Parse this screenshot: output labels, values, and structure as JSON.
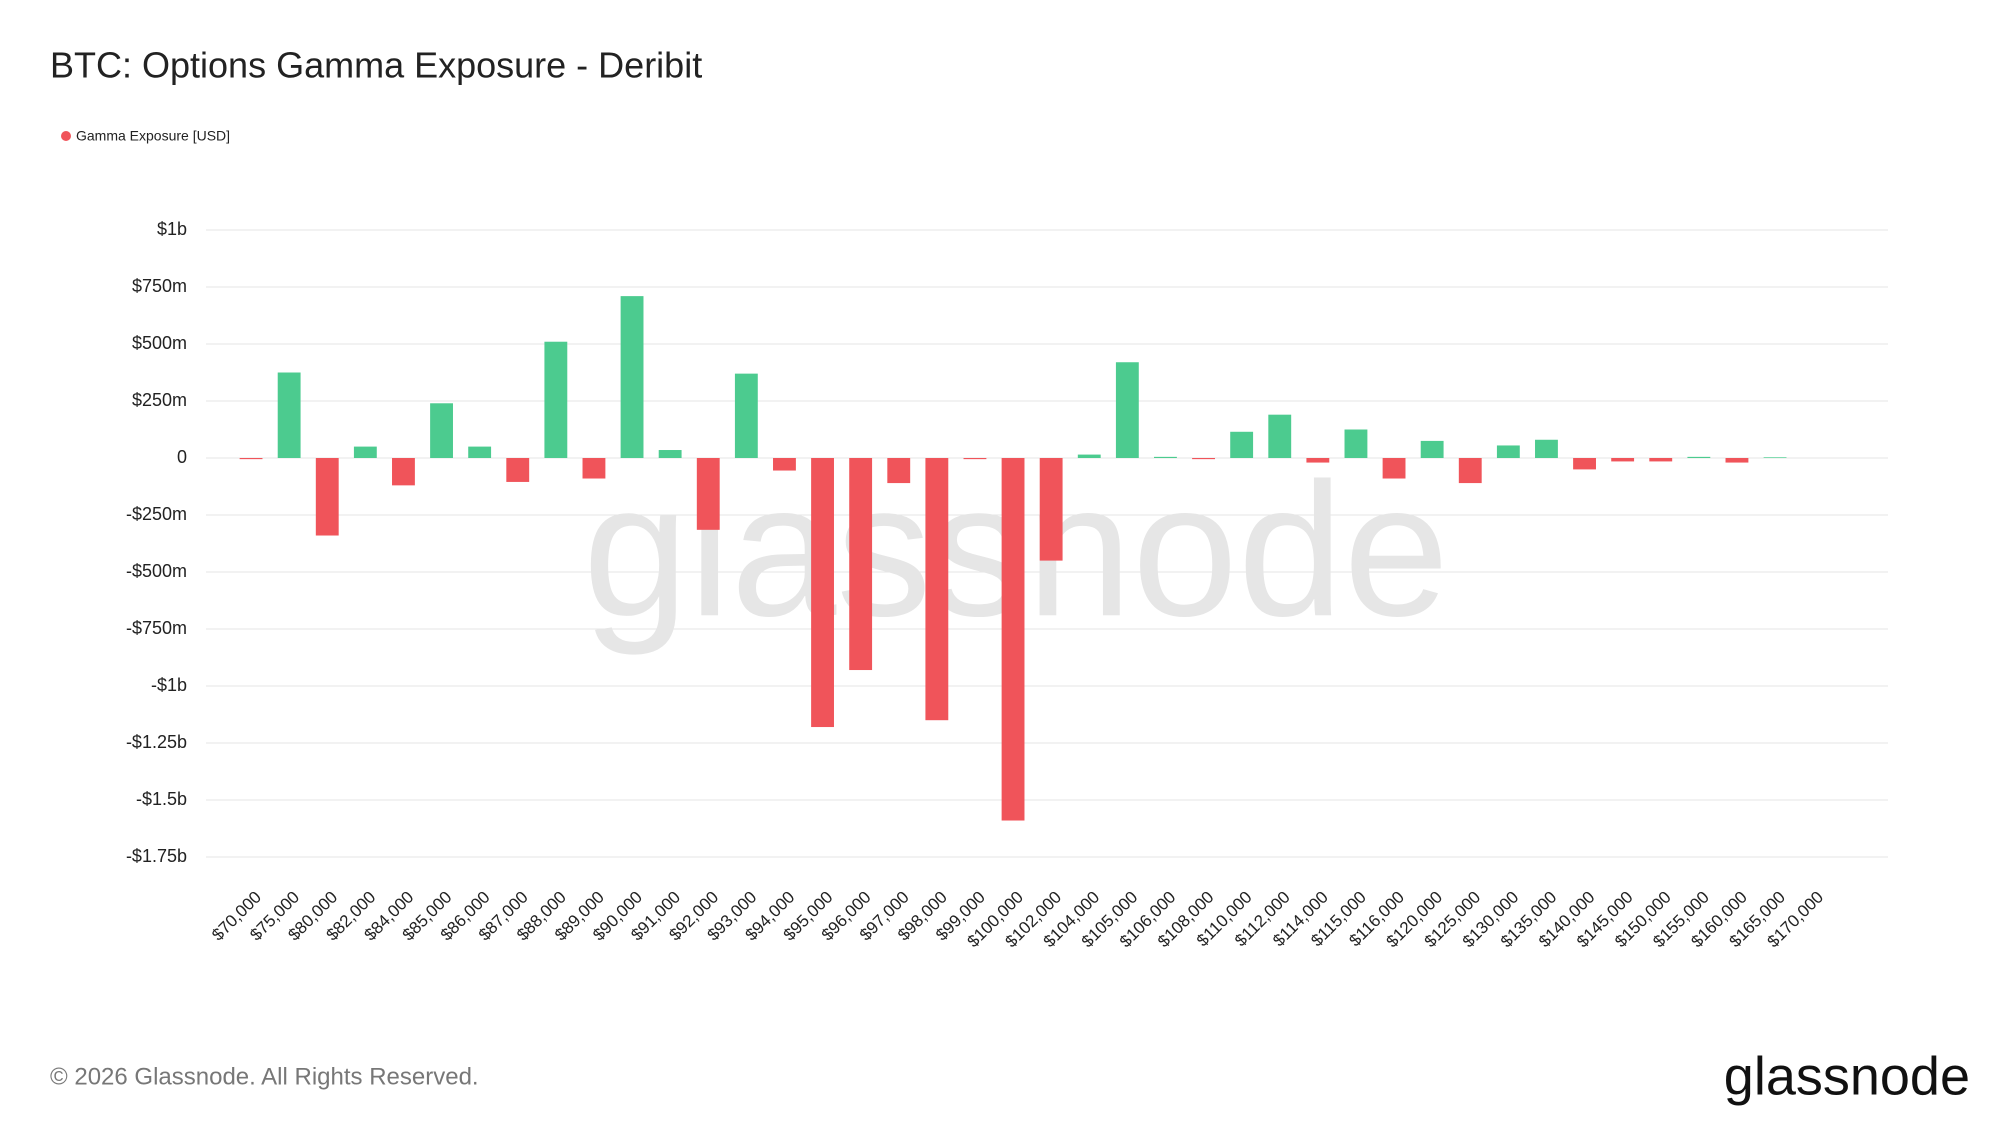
{
  "chart_data": {
    "type": "bar",
    "title": "BTC: Options Gamma Exposure - Deribit",
    "watermark": "glassnode",
    "series": [
      {
        "name": "Gamma Exposure [USD]",
        "color": "#f0545a",
        "positive_color": "#4ccb8f",
        "values": [
          -5000000,
          375000000,
          -340000000,
          50000000,
          -120000000,
          240000000,
          50000000,
          -105000000,
          510000000,
          -90000000,
          710000000,
          35000000,
          -315000000,
          370000000,
          -55000000,
          -1180000000,
          -930000000,
          -110000000,
          -1150000000,
          -5000000,
          -1590000000,
          -450000000,
          15000000,
          420000000,
          5000000,
          -5000000,
          115000000,
          190000000,
          -20000000,
          125000000,
          -90000000,
          75000000,
          -110000000,
          55000000,
          80000000,
          -50000000,
          -15000000,
          -15000000,
          5000000,
          -20000000,
          3000000,
          0
        ]
      }
    ],
    "categories": [
      "$70,000",
      "$75,000",
      "$80,000",
      "$82,000",
      "$84,000",
      "$85,000",
      "$86,000",
      "$87,000",
      "$88,000",
      "$89,000",
      "$90,000",
      "$91,000",
      "$92,000",
      "$93,000",
      "$94,000",
      "$95,000",
      "$96,000",
      "$97,000",
      "$98,000",
      "$99,000",
      "$100,000",
      "$102,000",
      "$104,000",
      "$105,000",
      "$106,000",
      "$108,000",
      "$110,000",
      "$112,000",
      "$114,000",
      "$115,000",
      "$116,000",
      "$120,000",
      "$125,000",
      "$130,000",
      "$135,000",
      "$140,000",
      "$145,000",
      "$150,000",
      "$155,000",
      "$160,000",
      "$165,000",
      "$170,000"
    ],
    "ylim": [
      -1750000000,
      1000000000
    ],
    "yticks": [
      {
        "value": 1000000000,
        "label": "$1b"
      },
      {
        "value": 750000000,
        "label": "$750m"
      },
      {
        "value": 500000000,
        "label": "$500m"
      },
      {
        "value": 250000000,
        "label": "$250m"
      },
      0,
      {
        "value": -250000000,
        "label": "-$250m"
      },
      {
        "value": -500000000,
        "label": "-$500m"
      },
      {
        "value": -750000000,
        "label": "-$750m"
      },
      {
        "value": -1000000000,
        "label": "-$1b"
      },
      {
        "value": -1250000000,
        "label": "-$1.25b"
      },
      {
        "value": -1500000000,
        "label": "-$1.5b"
      },
      {
        "value": -1750000000,
        "label": "-$1.75b"
      }
    ],
    "grid": true,
    "legend": "top-left"
  },
  "footer": {
    "copyright": "© 2026 Glassnode. All Rights Reserved.",
    "logo": "glassnode"
  }
}
